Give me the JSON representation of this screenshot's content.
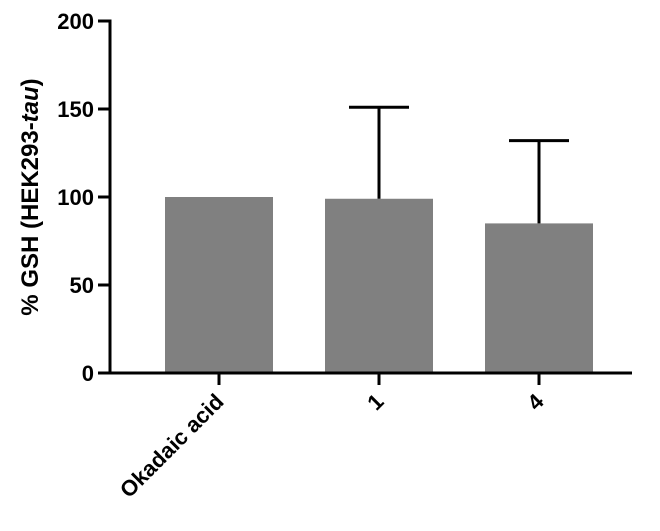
{
  "chart_data": {
    "type": "bar",
    "categories": [
      "Okadaic acid",
      "1",
      "4"
    ],
    "series": [
      {
        "values": [
          100,
          99,
          85
        ],
        "error_plus": [
          0,
          52,
          47
        ]
      }
    ],
    "xlabel": "",
    "ylabel": {
      "main": "% GSH (HEK293-",
      "italic": "tau",
      "close": ")"
    },
    "ylim": [
      0,
      200
    ],
    "yticks": [
      "0",
      "50",
      "100",
      "150",
      "200"
    ],
    "grid": false,
    "legend": "none",
    "colors": {
      "bar": "#808080",
      "axis": "#000000",
      "error_bar": "#000000"
    }
  }
}
